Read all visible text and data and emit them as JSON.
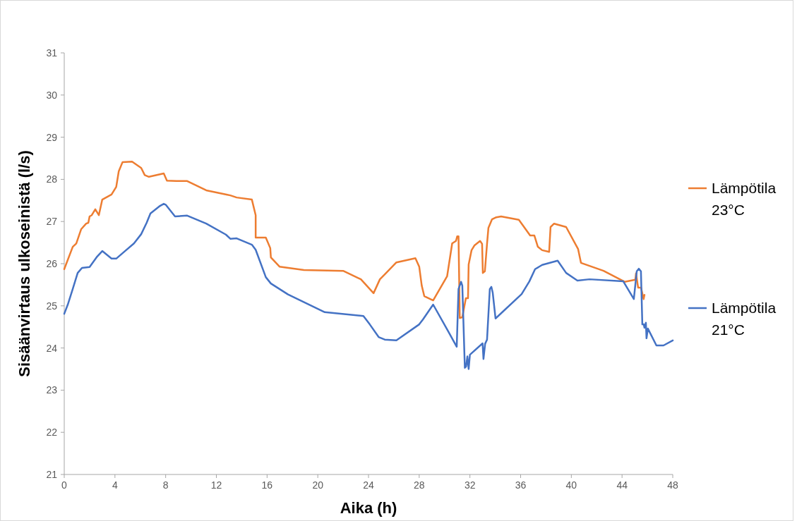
{
  "chart_data": {
    "type": "line",
    "xlabel": "Aika (h)",
    "ylabel": "Sisäänvirtaus ulkoseinistä (l/s)",
    "xlim": [
      0,
      48
    ],
    "xticks": [
      0,
      4,
      8,
      12,
      16,
      20,
      24,
      28,
      32,
      36,
      40,
      44,
      48
    ],
    "ylim": [
      21,
      31
    ],
    "yticks": [
      21,
      22,
      23,
      24,
      25,
      26,
      27,
      28,
      29,
      30,
      31
    ],
    "grid": false,
    "legend": "right",
    "series": [
      {
        "name": "Lämpötila 23°C",
        "color": "#ed7d31",
        "x": [
          0,
          0.67,
          0.95,
          1.34,
          1.73,
          1.9,
          2.0,
          2.17,
          2.45,
          2.73,
          3.0,
          3.73,
          4.1,
          4.3,
          4.6,
          5.35,
          6.07,
          6.35,
          6.68,
          7.85,
          8.1,
          8.85,
          9.7,
          11.2,
          12.8,
          13.1,
          13.6,
          14.8,
          15.1,
          15.1,
          15.9,
          16.25,
          16.3,
          16.98,
          18.9,
          22.0,
          23.4,
          24.4,
          24.9,
          25.3,
          26.2,
          27.7,
          28.0,
          28.2,
          28.4,
          29.1,
          30.2,
          30.6,
          30.9,
          31.0,
          31.1,
          31.2,
          31.4,
          31.68,
          31.85,
          31.9,
          32.13,
          32.35,
          32.8,
          32.96,
          33.02,
          33.18,
          33.35,
          33.46,
          33.74,
          34.08,
          34.46,
          35.86,
          36.75,
          37.08,
          37.36,
          37.7,
          38.25,
          38.36,
          38.64,
          39.59,
          40.53,
          40.76,
          42.54,
          44.2,
          45.05,
          45.1,
          45.27,
          45.5,
          45.7,
          45.77
        ],
        "values": [
          25.87,
          26.4,
          26.48,
          26.82,
          26.95,
          26.97,
          27.12,
          27.15,
          27.29,
          27.15,
          27.52,
          27.64,
          27.82,
          28.19,
          28.41,
          28.42,
          28.27,
          28.1,
          28.06,
          28.14,
          27.97,
          27.96,
          27.96,
          27.74,
          27.64,
          27.62,
          27.57,
          27.52,
          27.15,
          26.62,
          26.62,
          26.37,
          26.15,
          25.93,
          25.85,
          25.83,
          25.63,
          25.3,
          25.63,
          25.75,
          26.03,
          26.13,
          25.93,
          25.48,
          25.23,
          25.13,
          25.7,
          26.48,
          26.54,
          26.65,
          26.65,
          24.71,
          24.73,
          25.18,
          25.18,
          25.98,
          26.32,
          26.43,
          26.54,
          26.47,
          25.78,
          25.82,
          26.47,
          26.85,
          27.05,
          27.1,
          27.12,
          27.04,
          26.67,
          26.67,
          26.4,
          26.32,
          26.28,
          26.87,
          26.95,
          26.87,
          26.35,
          26.02,
          25.83,
          25.57,
          25.62,
          25.77,
          25.43,
          25.43,
          25.16,
          25.26
        ]
      },
      {
        "name": "Lämpötila 21°C",
        "color": "#4472c4",
        "x": [
          0,
          0.28,
          0.67,
          1.06,
          1.4,
          2.0,
          2.6,
          3.0,
          3.73,
          4.1,
          4.68,
          5.5,
          6.07,
          6.5,
          6.8,
          7.5,
          7.85,
          8.0,
          8.74,
          9.7,
          11.2,
          12.75,
          13.1,
          13.6,
          14.8,
          15.1,
          15.9,
          16.3,
          17.65,
          20.55,
          23.6,
          24.1,
          24.8,
          25.28,
          26.2,
          28.0,
          28.3,
          29.1,
          30.3,
          30.96,
          31.1,
          31.3,
          31.4,
          31.6,
          31.7,
          31.8,
          31.9,
          32.0,
          33.0,
          33.07,
          33.2,
          33.35,
          33.57,
          33.69,
          33.8,
          34.02,
          36.08,
          36.69,
          37.14,
          37.7,
          38.92,
          39.59,
          40.48,
          41.43,
          44.1,
          44.93,
          45.16,
          45.32,
          45.49,
          45.6,
          45.71,
          45.77,
          45.88,
          45.93,
          46.04,
          46.71,
          47.27,
          48
        ],
        "values": [
          24.81,
          25.03,
          25.4,
          25.78,
          25.9,
          25.92,
          26.17,
          26.3,
          26.12,
          26.12,
          26.27,
          26.48,
          26.7,
          26.97,
          27.19,
          27.36,
          27.42,
          27.4,
          27.12,
          27.14,
          26.95,
          26.69,
          26.59,
          26.6,
          26.45,
          26.33,
          25.68,
          25.53,
          25.27,
          24.85,
          24.76,
          24.56,
          24.26,
          24.2,
          24.18,
          24.56,
          24.68,
          25.03,
          24.39,
          24.03,
          25.4,
          25.57,
          25.48,
          23.53,
          23.56,
          23.8,
          23.5,
          23.84,
          24.11,
          23.74,
          24.1,
          24.2,
          25.4,
          25.45,
          25.31,
          24.7,
          25.28,
          25.58,
          25.87,
          25.97,
          26.07,
          25.78,
          25.6,
          25.63,
          25.58,
          25.16,
          25.82,
          25.88,
          25.82,
          24.56,
          24.56,
          24.48,
          24.6,
          24.23,
          24.46,
          24.06,
          24.06,
          24.18
        ]
      }
    ]
  }
}
